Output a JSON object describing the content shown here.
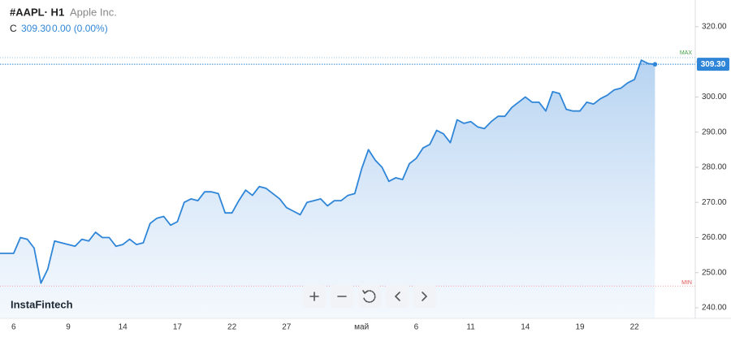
{
  "chart_data": {
    "type": "area",
    "symbol": "#AAPL· H1",
    "name": "Apple Inc.",
    "close_label": "C",
    "close": "309.30",
    "change": "0.00 (0.00%)",
    "watermark": "InstaFintech",
    "color": "#2f86d8",
    "categories": [
      null,
      null,
      "6",
      null,
      null,
      null,
      null,
      null,
      null,
      null,
      "9",
      null,
      null,
      null,
      null,
      null,
      null,
      null,
      "14",
      null,
      null,
      null,
      null,
      null,
      null,
      null,
      "17",
      null,
      null,
      null,
      null,
      null,
      null,
      null,
      "22",
      null,
      null,
      null,
      null,
      null,
      null,
      null,
      "27",
      null,
      null,
      null,
      null,
      null,
      null,
      null,
      null,
      null,
      null,
      "май",
      null,
      null,
      null,
      null,
      null,
      null,
      null,
      "6",
      null,
      null,
      null,
      null,
      null,
      null,
      null,
      "11",
      null,
      null,
      null,
      null,
      null,
      null,
      null,
      "14",
      null,
      null,
      null,
      null,
      null,
      null,
      null,
      "19",
      null,
      null,
      null,
      null,
      null,
      null,
      null,
      "22",
      null,
      null,
      null
    ],
    "values": [
      255.5,
      255.5,
      255.5,
      260,
      259.5,
      257,
      247,
      251,
      259,
      258.5,
      258,
      257.5,
      259.5,
      259,
      261.5,
      260,
      260,
      257.5,
      258,
      259.5,
      258,
      258.5,
      264,
      265.5,
      266,
      263.5,
      264.5,
      270,
      271,
      270.5,
      273,
      273,
      272.5,
      267,
      267,
      270.5,
      273.5,
      272,
      274.5,
      274,
      272.5,
      271,
      268.5,
      267.5,
      266.5,
      270,
      270.5,
      271,
      269,
      270.5,
      270.5,
      272,
      272.5,
      279.5,
      285,
      282,
      280,
      276,
      277,
      276.5,
      281,
      282.5,
      285.5,
      286.5,
      290.5,
      289.5,
      287,
      293.5,
      292.5,
      293,
      291.5,
      291,
      293,
      294.5,
      294.5,
      297,
      298.5,
      300,
      298.5,
      298.5,
      296,
      301.5,
      301,
      296.5,
      296,
      296,
      298.5,
      298,
      299.5,
      300.5,
      302,
      302.5,
      304,
      305,
      310.5,
      309.5,
      309.3
    ],
    "ylim": [
      237,
      327.6
    ],
    "yticks": [
      {
        "value": 240,
        "label": "240.00"
      },
      {
        "value": 250,
        "label": "250.00"
      },
      {
        "value": 260,
        "label": "260.00"
      },
      {
        "value": 270,
        "label": "270.00"
      },
      {
        "value": 280,
        "label": "280.00"
      },
      {
        "value": 290,
        "label": "290.00"
      },
      {
        "value": 300,
        "label": "300.00"
      },
      {
        "value": 310,
        "label": "310.00"
      },
      {
        "value": 320,
        "label": "320.00"
      }
    ],
    "max": {
      "value": 311.2,
      "label": "MAX"
    },
    "min": {
      "value": 246.2,
      "label": "MIN"
    },
    "last_price": {
      "value": 309.3,
      "label": "309.30"
    }
  }
}
